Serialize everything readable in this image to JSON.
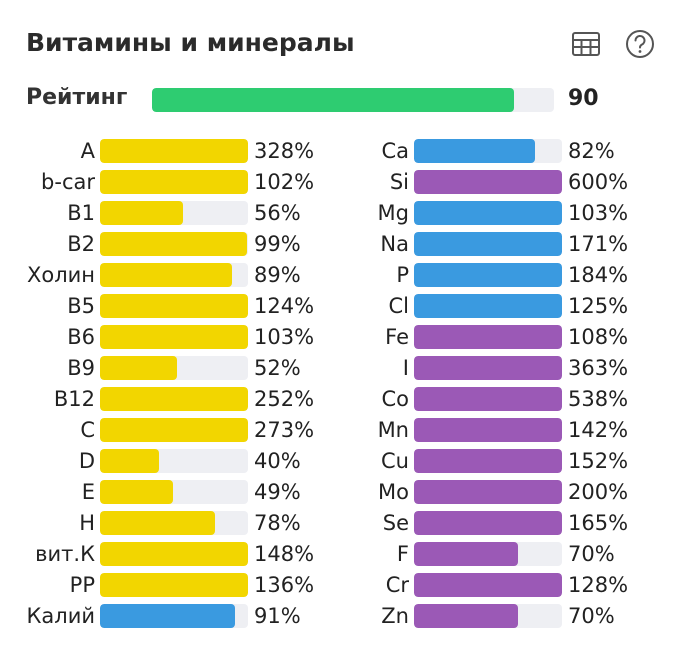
{
  "header": {
    "title": "Витамины и минералы",
    "table_icon": "table-icon",
    "help_icon": "help-icon"
  },
  "rating": {
    "label": "Рейтинг",
    "value": "90",
    "fraction": 0.9,
    "color": "#2ecc71"
  },
  "colors": {
    "vitamin": "#f2d600",
    "mineral_blue": "#3a9ae0",
    "mineral_purple": "#9b59b6",
    "track": "#eeeff3"
  },
  "chart_data": {
    "type": "bar",
    "unit": "%",
    "cap": 100,
    "left": [
      {
        "name": "A",
        "value": 328,
        "display": "328%",
        "color": "#f2d600"
      },
      {
        "name": "b-car",
        "value": 102,
        "display": "102%",
        "color": "#f2d600"
      },
      {
        "name": "B1",
        "value": 56,
        "display": "56%",
        "color": "#f2d600"
      },
      {
        "name": "B2",
        "value": 99,
        "display": "99%",
        "color": "#f2d600"
      },
      {
        "name": "Холин",
        "value": 89,
        "display": "89%",
        "color": "#f2d600"
      },
      {
        "name": "B5",
        "value": 124,
        "display": "124%",
        "color": "#f2d600"
      },
      {
        "name": "B6",
        "value": 103,
        "display": "103%",
        "color": "#f2d600"
      },
      {
        "name": "B9",
        "value": 52,
        "display": "52%",
        "color": "#f2d600"
      },
      {
        "name": "B12",
        "value": 252,
        "display": "252%",
        "color": "#f2d600"
      },
      {
        "name": "C",
        "value": 273,
        "display": "273%",
        "color": "#f2d600"
      },
      {
        "name": "D",
        "value": 40,
        "display": "40%",
        "color": "#f2d600"
      },
      {
        "name": "E",
        "value": 49,
        "display": "49%",
        "color": "#f2d600"
      },
      {
        "name": "H",
        "value": 78,
        "display": "78%",
        "color": "#f2d600"
      },
      {
        "name": "вит.К",
        "value": 148,
        "display": "148%",
        "color": "#f2d600"
      },
      {
        "name": "PP",
        "value": 136,
        "display": "136%",
        "color": "#f2d600"
      },
      {
        "name": "Калий",
        "value": 91,
        "display": "91%",
        "color": "#3a9ae0"
      }
    ],
    "right": [
      {
        "name": "Ca",
        "value": 82,
        "display": "82%",
        "color": "#3a9ae0"
      },
      {
        "name": "Si",
        "value": 600,
        "display": "600%",
        "color": "#9b59b6"
      },
      {
        "name": "Mg",
        "value": 103,
        "display": "103%",
        "color": "#3a9ae0"
      },
      {
        "name": "Na",
        "value": 171,
        "display": "171%",
        "color": "#3a9ae0"
      },
      {
        "name": "P",
        "value": 184,
        "display": "184%",
        "color": "#3a9ae0"
      },
      {
        "name": "Cl",
        "value": 125,
        "display": "125%",
        "color": "#3a9ae0"
      },
      {
        "name": "Fe",
        "value": 108,
        "display": "108%",
        "color": "#9b59b6"
      },
      {
        "name": "I",
        "value": 363,
        "display": "363%",
        "color": "#9b59b6"
      },
      {
        "name": "Co",
        "value": 538,
        "display": "538%",
        "color": "#9b59b6"
      },
      {
        "name": "Mn",
        "value": 142,
        "display": "142%",
        "color": "#9b59b6"
      },
      {
        "name": "Cu",
        "value": 152,
        "display": "152%",
        "color": "#9b59b6"
      },
      {
        "name": "Mo",
        "value": 200,
        "display": "200%",
        "color": "#9b59b6"
      },
      {
        "name": "Se",
        "value": 165,
        "display": "165%",
        "color": "#9b59b6"
      },
      {
        "name": "F",
        "value": 70,
        "display": "70%",
        "color": "#9b59b6"
      },
      {
        "name": "Cr",
        "value": 128,
        "display": "128%",
        "color": "#9b59b6"
      },
      {
        "name": "Zn",
        "value": 70,
        "display": "70%",
        "color": "#9b59b6"
      }
    ]
  }
}
